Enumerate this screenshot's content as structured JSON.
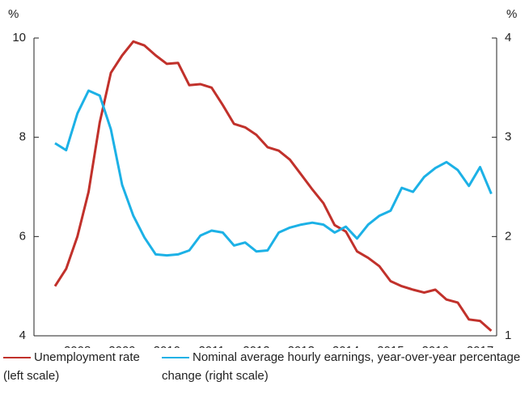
{
  "chart_data": {
    "type": "line",
    "y_unit_left": "%",
    "y_unit_right": "%",
    "x": [
      2008.0,
      2008.25,
      2008.5,
      2008.75,
      2009.0,
      2009.25,
      2009.5,
      2009.75,
      2010.0,
      2010.25,
      2010.5,
      2010.75,
      2011.0,
      2011.25,
      2011.5,
      2011.75,
      2012.0,
      2012.25,
      2012.5,
      2012.75,
      2013.0,
      2013.25,
      2013.5,
      2013.75,
      2014.0,
      2014.25,
      2014.5,
      2014.75,
      2015.0,
      2015.25,
      2015.5,
      2015.75,
      2016.0,
      2016.25,
      2016.5,
      2016.75,
      2017.0,
      2017.25,
      2017.5,
      2017.75
    ],
    "xlim": [
      2007.53,
      2017.87
    ],
    "xticks": [
      {
        "value": 2008.5,
        "label": "2008"
      },
      {
        "value": 2009.5,
        "label": "2009"
      },
      {
        "value": 2010.5,
        "label": "2010"
      },
      {
        "value": 2011.5,
        "label": "2011"
      },
      {
        "value": 2012.5,
        "label": "2012"
      },
      {
        "value": 2013.5,
        "label": "2013"
      },
      {
        "value": 2014.5,
        "label": "2014"
      },
      {
        "value": 2015.5,
        "label": "2015"
      },
      {
        "value": 2016.5,
        "label": "2016"
      },
      {
        "value": 2017.5,
        "label": "2017"
      }
    ],
    "ylim": [
      4,
      10
    ],
    "yticks": [
      4,
      6,
      8,
      10
    ],
    "y2lim": [
      1,
      4
    ],
    "y2ticks": [
      1,
      2,
      3,
      4
    ],
    "series": [
      {
        "name": "Unemployment rate (left scale)",
        "color": "#c1312b",
        "values": [
          5.0,
          5.35,
          6.0,
          6.9,
          8.3,
          9.3,
          9.65,
          9.93,
          9.85,
          9.65,
          9.48,
          9.5,
          9.05,
          9.07,
          9.0,
          8.65,
          8.27,
          8.2,
          8.05,
          7.8,
          7.73,
          7.55,
          7.25,
          6.95,
          6.67,
          6.23,
          6.1,
          5.7,
          5.57,
          5.4,
          5.1,
          5.0,
          4.93,
          4.87,
          4.93,
          4.73,
          4.67,
          4.33,
          4.3,
          4.1
        ]
      },
      {
        "name": "Nominal average hourly earnings, year-over-year percentage change (right scale)",
        "color": "#1cb1e6",
        "axis": "y2",
        "values": [
          2.94,
          2.87,
          3.24,
          3.47,
          3.42,
          3.08,
          2.52,
          2.21,
          1.99,
          1.82,
          1.81,
          1.82,
          1.86,
          2.01,
          2.06,
          2.04,
          1.91,
          1.94,
          1.85,
          1.86,
          2.04,
          2.09,
          2.12,
          2.14,
          2.12,
          2.04,
          2.1,
          1.98,
          2.12,
          2.21,
          2.26,
          2.49,
          2.45,
          2.6,
          2.69,
          2.75,
          2.67,
          2.51,
          2.7,
          2.43
        ]
      }
    ]
  }
}
